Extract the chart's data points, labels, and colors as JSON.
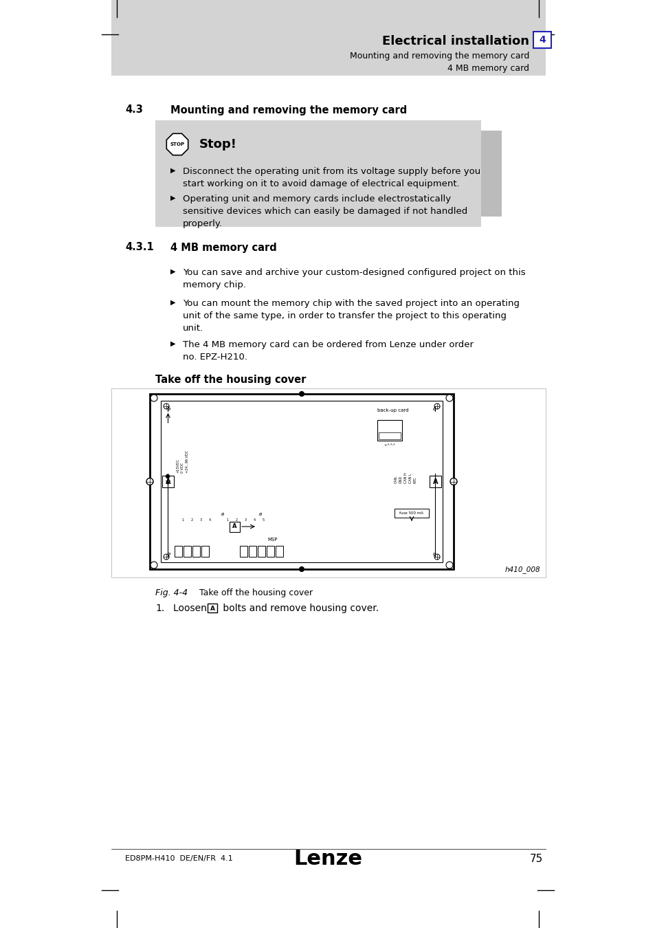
{
  "page_bg": "#ffffff",
  "header_bg": "#d3d3d3",
  "header_title": "Electrical installation",
  "header_sub1": "Mounting and removing the memory card",
  "header_sub2": "4 MB memory card",
  "header_num": "4",
  "section_43": "4.3",
  "section_43_title": "Mounting and removing the memory card",
  "stop_box_bg": "#d3d3d3",
  "stop_side_bg": "#bbbbbb",
  "stop_title": "Stop!",
  "stop_bullet1_line1": "Disconnect the operating unit from its voltage supply before you",
  "stop_bullet1_line2": "start working on it to avoid damage of electrical equipment.",
  "stop_bullet2_line1": "Operating unit and memory cards include electrostatically",
  "stop_bullet2_line2": "sensitive devices which can easily be damaged if not handled",
  "stop_bullet2_line3": "properly.",
  "section_431": "4.3.1",
  "section_431_title": "4 MB memory card",
  "bullet_a_line1": "You can save and archive your custom-designed configured project on this",
  "bullet_a_line2": "memory chip.",
  "bullet_b_line1": "You can mount the memory chip with the saved project into an operating",
  "bullet_b_line2": "unit of the same type, in order to transfer the project to this operating",
  "bullet_b_line3": "unit.",
  "bullet_c_line1": "The 4 MB memory card can be ordered from Lenze under order",
  "bullet_c_line2": "no. EPZ-H210.",
  "housing_title": "Take off the housing cover",
  "fig_label": "Fig. 4-4",
  "fig_caption": "Take off the housing cover",
  "footer_left": "ED8PM-H410  DE/EN/FR  4.1",
  "footer_page": "75",
  "fig_ref": "h410_008"
}
